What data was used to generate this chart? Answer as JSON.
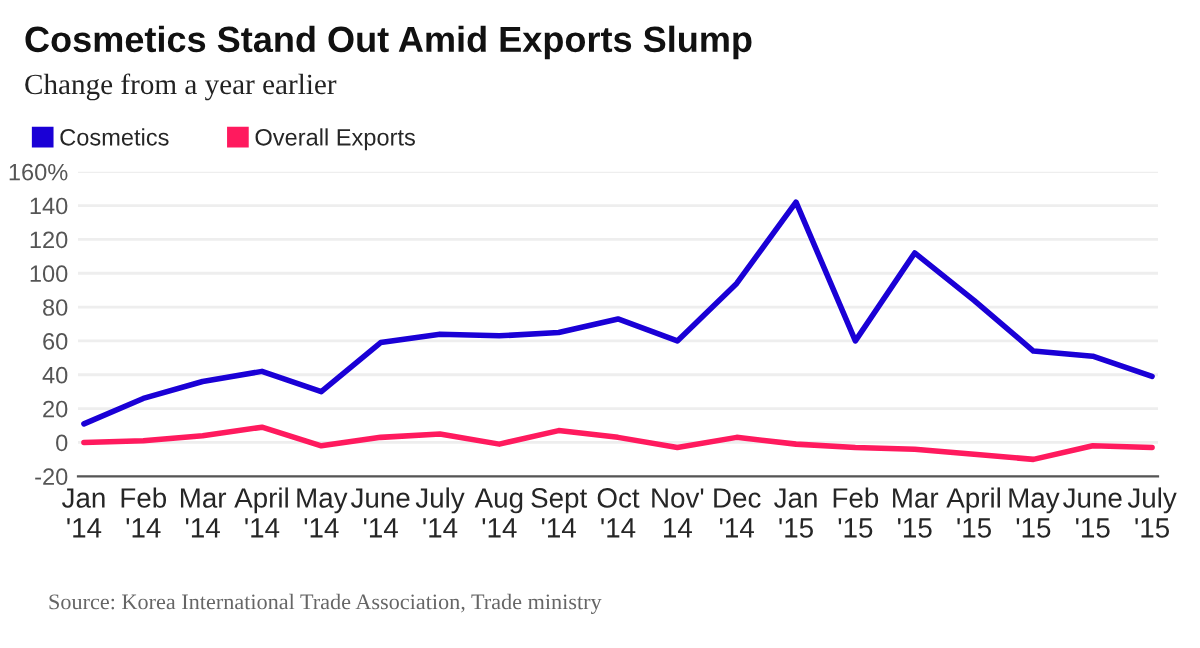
{
  "chart_data": {
    "type": "line",
    "title": "Cosmetics Stand Out Amid Exports Slump",
    "subtitle": "Change from a year earlier",
    "categories": [
      "Jan\n'14",
      "Feb\n'14",
      "Mar\n'14",
      "April\n'14",
      "May\n'14",
      "June\n'14",
      "July\n'14",
      "Aug\n'14",
      "Sept\n'14",
      "Oct\n'14",
      "Nov'\n14",
      "Dec\n'14",
      "Jan\n'15",
      "Feb\n'15",
      "Mar\n'15",
      "April\n'15",
      "May\n'15",
      "June\n'15",
      "July\n'15"
    ],
    "series": [
      {
        "name": "Cosmetics",
        "color": "#1a00d6",
        "values": [
          11,
          26,
          36,
          42,
          30,
          59,
          64,
          63,
          65,
          73,
          60,
          94,
          142,
          60,
          112,
          84,
          54,
          51,
          39
        ]
      },
      {
        "name": "Overall Exports",
        "color": "#ff1a5e",
        "values": [
          0,
          1,
          4,
          9,
          -2,
          3,
          5,
          -1,
          7,
          3,
          -3,
          3,
          -1,
          -3,
          -4,
          -7,
          -10,
          -2,
          -3
        ]
      }
    ],
    "ylim": [
      -20,
      160
    ],
    "yticks": [
      -20,
      0,
      20,
      40,
      60,
      80,
      100,
      120,
      {
        "value": 140,
        "label": "140"
      },
      {
        "value": 160,
        "label": "160%"
      }
    ],
    "grid": "y",
    "legend": "top left",
    "marker": "none",
    "line_style": "solid",
    "annotations": [
      "Source: Korea International Trade Association, Trade ministry"
    ]
  }
}
